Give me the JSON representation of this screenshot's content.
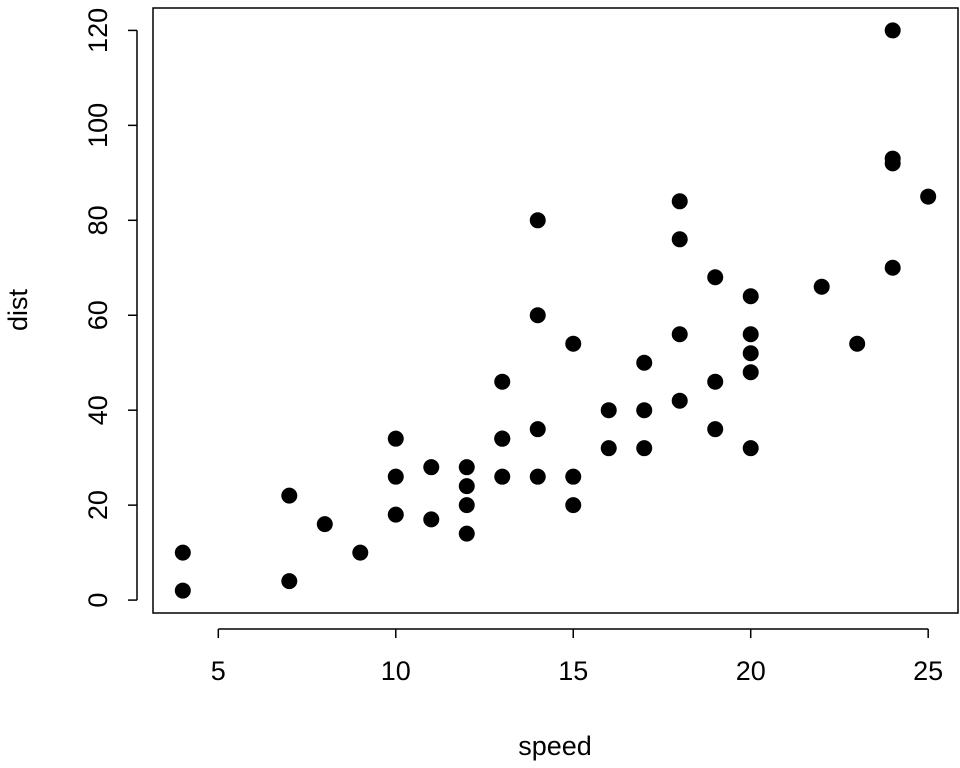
{
  "chart_data": {
    "type": "scatter",
    "x_label": "speed",
    "y_label": "dist",
    "x": [
      4,
      4,
      7,
      7,
      8,
      9,
      10,
      10,
      10,
      11,
      11,
      12,
      12,
      12,
      12,
      13,
      13,
      13,
      13,
      14,
      14,
      14,
      14,
      15,
      15,
      15,
      16,
      16,
      17,
      17,
      17,
      18,
      18,
      18,
      18,
      19,
      19,
      19,
      20,
      20,
      20,
      20,
      20,
      22,
      23,
      24,
      24,
      24,
      24,
      25
    ],
    "series": [
      {
        "name": "dist",
        "color": "#000000",
        "values": [
          2,
          10,
          4,
          22,
          16,
          10,
          18,
          26,
          34,
          17,
          28,
          14,
          20,
          24,
          28,
          26,
          34,
          34,
          46,
          26,
          36,
          60,
          80,
          20,
          26,
          54,
          32,
          40,
          32,
          40,
          50,
          42,
          56,
          76,
          84,
          36,
          46,
          68,
          32,
          48,
          52,
          56,
          64,
          66,
          54,
          70,
          92,
          93,
          120,
          85
        ]
      }
    ],
    "xlim": [
      3.16,
      25.84
    ],
    "ylim": [
      -2.72,
      124.72
    ],
    "xticks": [
      5,
      10,
      15,
      20,
      25
    ],
    "yticks": [
      0,
      20,
      40,
      60,
      80,
      100,
      120
    ]
  }
}
